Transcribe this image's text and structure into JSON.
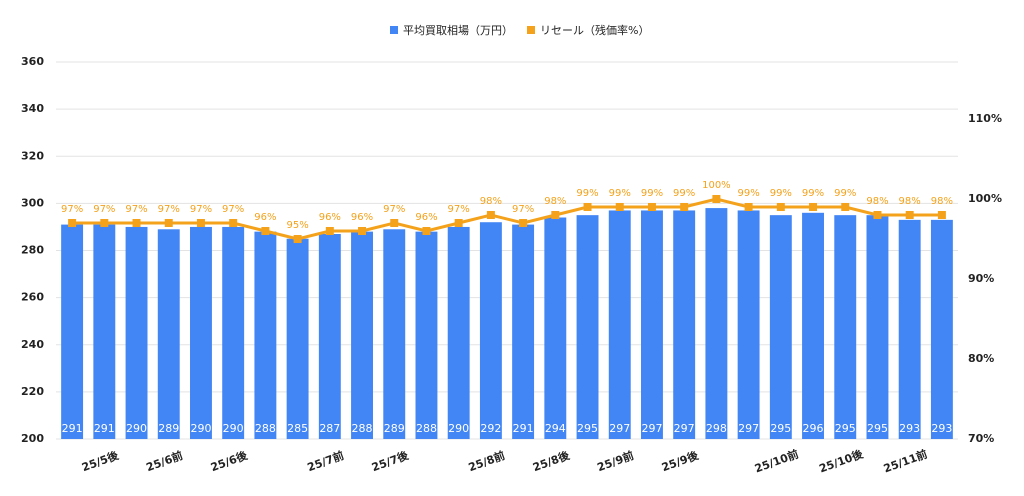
{
  "chart_data": {
    "type": "combo",
    "categories": [
      null,
      "25/5後",
      null,
      "25/6前",
      null,
      "25/6後",
      null,
      null,
      "25/7前",
      null,
      "25/7後",
      null,
      null,
      "25/8前",
      null,
      "25/8後",
      null,
      "25/9前",
      null,
      "25/9後",
      null,
      null,
      "25/10前",
      null,
      "25/10後",
      null,
      "25/11前",
      null
    ],
    "series": [
      {
        "name": "平均買取相場（万円）",
        "type": "bar",
        "color": "#4285f4",
        "values": [
          291,
          291,
          290,
          289,
          290,
          290,
          288,
          285,
          287,
          288,
          289,
          288,
          290,
          292,
          291,
          294,
          295,
          297,
          297,
          297,
          298,
          297,
          295,
          296,
          295,
          295,
          293,
          293
        ]
      },
      {
        "name": "リセール（残価率%）",
        "type": "line",
        "axis": "y2",
        "color": "#f4a21b",
        "values": [
          97,
          97,
          97,
          97,
          97,
          97,
          96,
          95,
          96,
          96,
          97,
          96,
          97,
          98,
          97,
          98,
          99,
          99,
          99,
          99,
          100,
          99,
          99,
          99,
          99,
          98,
          98,
          98
        ],
        "value_labels": [
          "97%",
          "97%",
          "97%",
          "97%",
          "97%",
          "97%",
          "96%",
          "95%",
          "96%",
          "96%",
          "97%",
          "96%",
          "97%",
          "98%",
          "97%",
          "98%",
          "99%",
          "99%",
          "99%",
          "99%",
          "100%",
          "99%",
          "99%",
          "99%",
          "99%",
          "98%",
          "98%",
          "98%"
        ]
      }
    ],
    "ylim": [
      200,
      360
    ],
    "yticks": [
      200,
      220,
      240,
      260,
      280,
      300,
      320,
      340,
      360
    ],
    "y2lim": [
      70,
      117.125
    ],
    "y2ticks": [
      {
        "value": 70,
        "label": "70%"
      },
      {
        "value": 80,
        "label": "80%"
      },
      {
        "value": 90,
        "label": "90%"
      },
      {
        "value": 100,
        "label": "100%"
      },
      {
        "value": 110,
        "label": "110%"
      }
    ],
    "grid": true,
    "legend": "top"
  }
}
